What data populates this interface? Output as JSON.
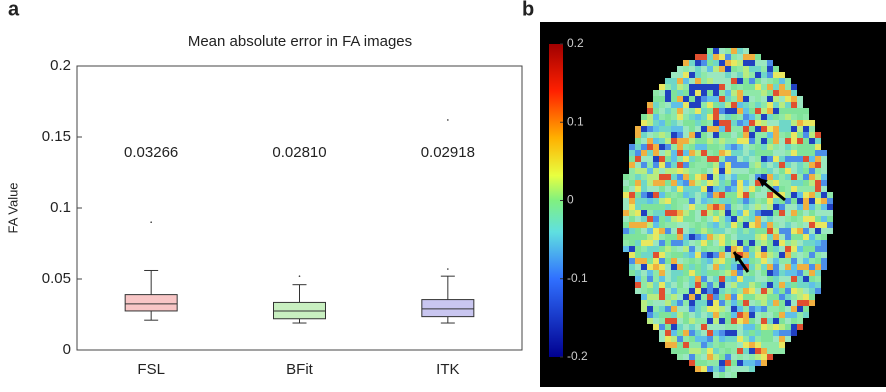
{
  "panel_labels": [
    "a",
    "b"
  ],
  "chart_data": {
    "type": "box",
    "title": "Mean absolute error in FA images",
    "ylabel": "FA Value",
    "categories": [
      "FSL",
      "BFit",
      "ITK"
    ],
    "ylim": [
      0,
      0.2
    ],
    "yticks": [
      0,
      0.05,
      0.1,
      0.15,
      0.2
    ],
    "series": [
      {
        "color": "#f8c6c6",
        "whisker_low": 0.021,
        "q1": 0.0275,
        "median": 0.0325,
        "q3": 0.039,
        "whisker_high": 0.056,
        "outliers": [
          0.09
        ],
        "mean": 0.03266,
        "mean_label": "0.03266"
      },
      {
        "color": "#c8efc0",
        "whisker_low": 0.019,
        "q1": 0.022,
        "median": 0.0275,
        "q3": 0.0335,
        "whisker_high": 0.046,
        "outliers": [
          0.052
        ],
        "mean": 0.0281,
        "mean_label": "0.02810"
      },
      {
        "color": "#c9c6f0",
        "whisker_low": 0.019,
        "q1": 0.0235,
        "median": 0.029,
        "q3": 0.0355,
        "whisker_high": 0.052,
        "outliers": [
          0.057,
          0.162
        ],
        "mean": 0.02918,
        "mean_label": "0.02918"
      }
    ]
  },
  "image": {
    "colorbar_lim": [
      -0.2,
      0.2
    ],
    "colorbar_ticks": [
      0.2,
      0.1,
      0,
      -0.1,
      -0.2
    ]
  }
}
